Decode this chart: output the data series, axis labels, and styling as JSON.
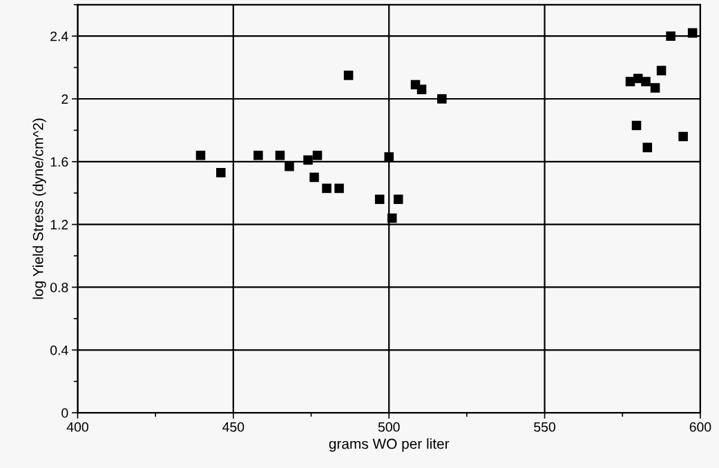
{
  "chart_data": {
    "type": "scatter",
    "xlabel": "grams WO per liter",
    "ylabel": "log Yield Stress (dyne/cm^2)",
    "series": [
      {
        "color": "#000000",
        "x": [
          439.5,
          446,
          458,
          465,
          468,
          474,
          476,
          477,
          480,
          484,
          487,
          497,
          500,
          501,
          503,
          508.5,
          510.5,
          517,
          577.5,
          580,
          582.5,
          579.5,
          583,
          585.5,
          587.5,
          590.5,
          594.5,
          597.5
        ],
        "values": [
          1.64,
          1.53,
          1.64,
          1.64,
          1.57,
          1.61,
          1.5,
          1.64,
          1.43,
          1.43,
          2.15,
          1.36,
          1.63,
          1.24,
          1.36,
          2.09,
          2.06,
          2.0,
          2.11,
          2.13,
          2.11,
          1.83,
          1.69,
          2.07,
          2.18,
          2.4,
          1.76,
          2.42
        ]
      }
    ],
    "xlim": [
      400,
      600
    ],
    "xticks": [
      400,
      450,
      500,
      550,
      600
    ],
    "ylim": [
      0,
      2.6
    ],
    "yticks": [
      0,
      0.4,
      0.8,
      1.2,
      1.6,
      2,
      2.4
    ],
    "grid": true,
    "marker": "square"
  }
}
